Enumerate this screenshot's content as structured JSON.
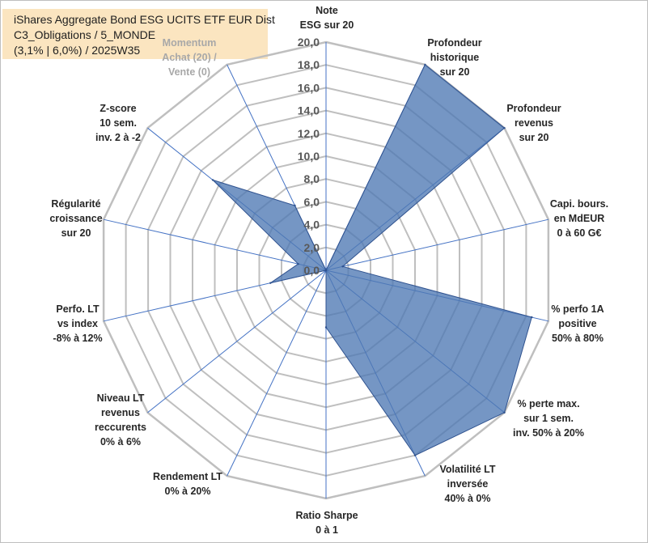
{
  "title_lines": [
    "iShares Aggregate Bond ESG UCITS ETF EUR Dist",
    "C3_Obligations / 5_MONDE",
    "(3,1% | 6,0%) / 2025W35"
  ],
  "chart_data": {
    "type": "radar",
    "r_min": 0,
    "r_max": 20,
    "tick_step": 2,
    "tick_labels": [
      "0,0",
      "2,0",
      "4,0",
      "6,0",
      "8,0",
      "10,0",
      "12,0",
      "14,0",
      "16,0",
      "18,0",
      "20,0"
    ],
    "grid": true,
    "axes": [
      {
        "label": [
          "Note",
          "ESG sur 20"
        ],
        "muted": false
      },
      {
        "label": [
          "Profondeur",
          "historique",
          "sur 20"
        ],
        "muted": false
      },
      {
        "label": [
          "Profondeur",
          "revenus",
          "sur 20"
        ],
        "muted": false
      },
      {
        "label": [
          "Capi. bours.",
          "en MdEUR",
          "0 à 60 G€"
        ],
        "muted": false
      },
      {
        "label": [
          "% perfo 1A",
          "positive",
          "50% à 80%"
        ],
        "muted": false
      },
      {
        "label": [
          "% perte max.",
          "sur 1 sem.",
          "inv. 50% à 20%"
        ],
        "muted": false
      },
      {
        "label": [
          "Volatilité LT",
          "inversée",
          "40% à 0%"
        ],
        "muted": false
      },
      {
        "label": [
          "Ratio Sharpe",
          "0 à 1"
        ],
        "muted": false
      },
      {
        "label": [
          "Rendement LT",
          "0% à 20%"
        ],
        "muted": false
      },
      {
        "label": [
          "Niveau LT",
          "revenus",
          "reccurents",
          "0% à 6%"
        ],
        "muted": false
      },
      {
        "label": [
          "Perfo. LT",
          "vs index",
          "-8% à 12%"
        ],
        "muted": false
      },
      {
        "label": [
          "Régularité",
          "croissance",
          "sur 20"
        ],
        "muted": false
      },
      {
        "label": [
          "Z-score",
          "10 sem.",
          "inv. 2 à -2"
        ],
        "muted": false
      },
      {
        "label": [
          "Momentum",
          "Achat (20) /",
          "Vente (0)"
        ],
        "muted": true
      }
    ],
    "series": [
      {
        "values": [
          0,
          20,
          20,
          1.5,
          18.5,
          20,
          18,
          5,
          0,
          0,
          5,
          2.5,
          12.7,
          6.3
        ]
      }
    ],
    "colors": {
      "fill": "#4e79b4",
      "stroke": "#2f528f",
      "grid": "#bfbfbf",
      "spoke": "#4472c4"
    }
  }
}
